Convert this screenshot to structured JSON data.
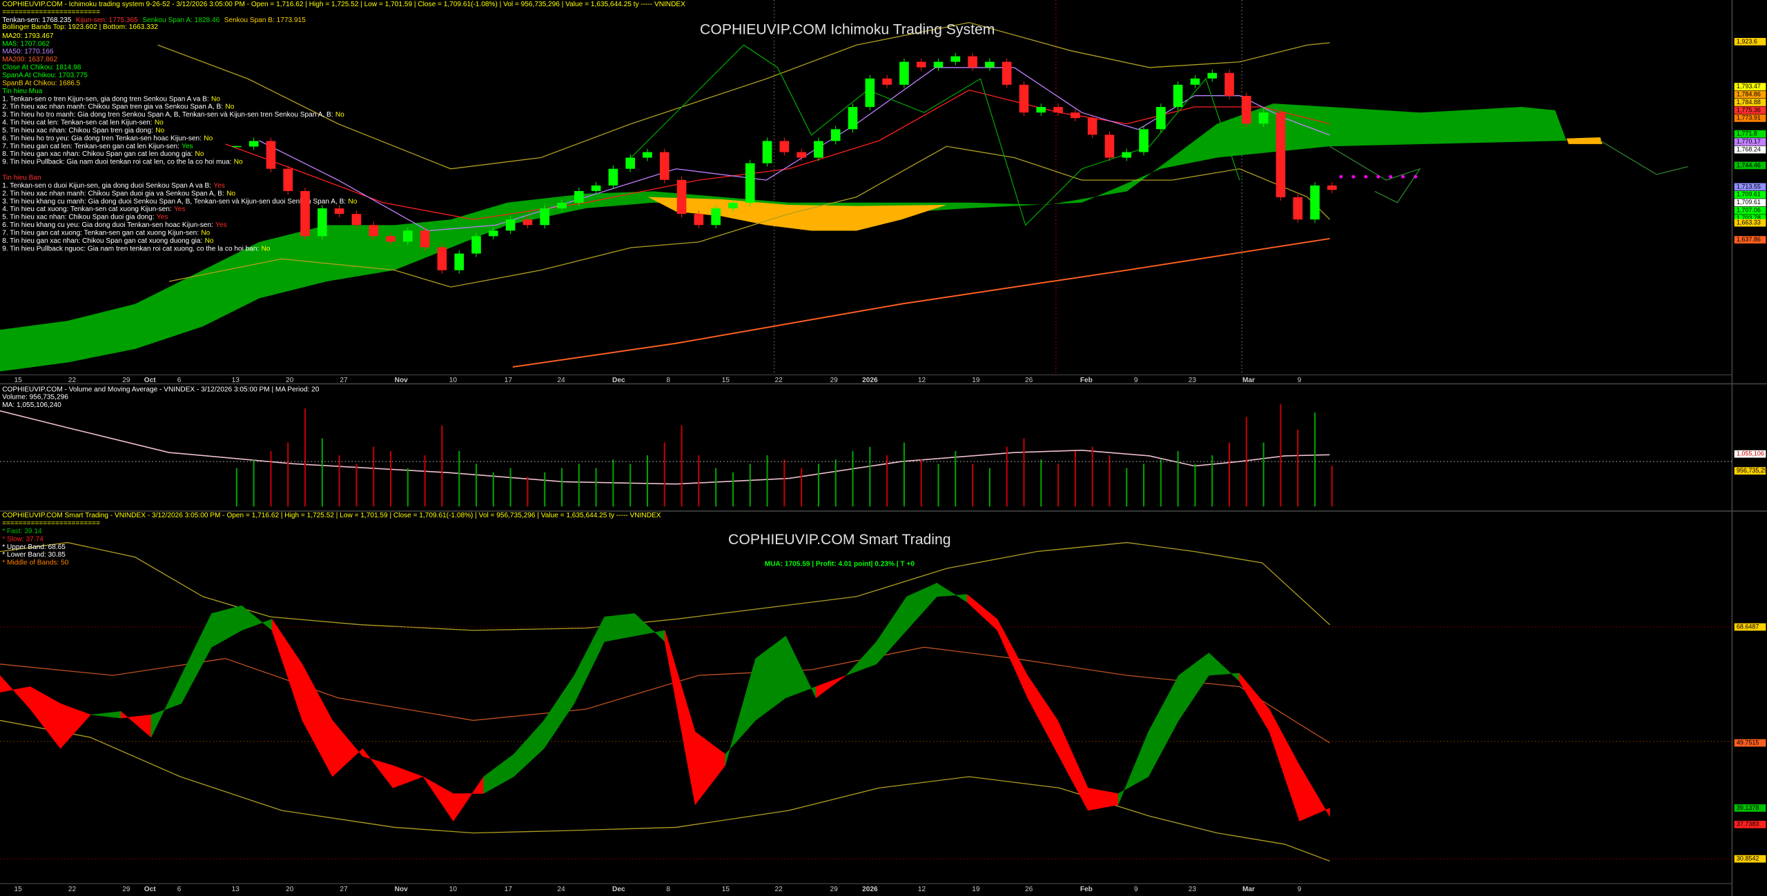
{
  "ichimoku": {
    "header": "COPHIEUVIP.COM - Ichimoku trading system 9-26-52 - 3/12/2026 3:05:00 PM - Open = 1,716.62 | High = 1,725.52 | Low = 1,701.59 | Close = 1,709.61(-1.08%) | Vol = 956,735,296 | Value = 1,635,644.25 ty ----- VNINDEX",
    "separator": "========================",
    "lines": [
      {
        "text": "Tenkan-sen: 1768.235",
        "color": "#ffffff"
      },
      {
        "text": "Kijun-sen: 1775.365",
        "color": "#ff3030"
      },
      {
        "text": "Senkou Span A: 1828.46",
        "color": "#00e000"
      },
      {
        "text": "Senkou Span B: 1773.915",
        "color": "#ffd000"
      }
    ],
    "bollinger": "Bollinger Bands Top: 1923.602 | Bottom: 1663.332",
    "indicators": [
      {
        "text": "MA20: 1793.467",
        "color": "#ffff00"
      },
      {
        "text": "MA5: 1707.062",
        "color": "#00ff00"
      },
      {
        "text": "MA50: 1770.166",
        "color": "#c080ff"
      },
      {
        "text": "MA200: 1637.862",
        "color": "#ff6020"
      },
      {
        "text": "Close At Chikou: 1814.98",
        "color": "#00ff00"
      },
      {
        "text": "SpanA At Chikou: 1703.775",
        "color": "#00ff00"
      },
      {
        "text": "SpanB At Chikou: 1686.5",
        "color": "#ffd000"
      }
    ],
    "buy_title": "Tin hieu Mua",
    "buy_signals": [
      {
        "text": "1. Tenkan-sen o tren Kijun-sen, gia dong tren Senkou Span A va B:",
        "answer": "No"
      },
      {
        "text": "2. Tin hieu xac nhan manh: Chikou Span tren gia va Senkou Span A, B:",
        "answer": "No"
      },
      {
        "text": "3. Tin hieu ho tro manh: Gia dong tren Senkou Span A, B, Tenkan-sen và Kijun-sen tren Senkou Span A, B:",
        "answer": "No"
      },
      {
        "text": "4. Tin hieu cat len: Tenkan-sen cat len Kijun-sen:",
        "answer": "No"
      },
      {
        "text": "5. Tin hieu xac nhan: Chikou Span tren gia dong:",
        "answer": "No"
      },
      {
        "text": "6. Tin hieu ho tro yeu: Gia dong tren Tenkan-sen hoac Kijun-sen:",
        "answer": "No"
      },
      {
        "text": "7. Tin hieu gan cat len: Tenkan-sen gan cat len Kijun-sen:",
        "answer": "Yes"
      },
      {
        "text": "8. Tin hieu gan xac nhan: Chikou Span gan cat len duong gia:",
        "answer": "No"
      },
      {
        "text": "9. Tin hieu Pullback: Gia nam duoi tenkan roi cat len, co the la co hoi mua:",
        "answer": "No"
      }
    ],
    "sell_title": "Tin hieu Ban",
    "sell_signals": [
      {
        "text": "1. Tenkan-sen o duoi Kijun-sen, gia dong duoi Senkou Span A va B:",
        "answer": "Yes"
      },
      {
        "text": "2. Tin hieu xac nhan manh: Chikou Span duoi gia va Senkou Span A, B:",
        "answer": "No"
      },
      {
        "text": "3. Tin hieu khang cu manh: Gia dong duoi Senkou Span A, B, Tenkan-sen và Kijun-sen duoi Senkou Span A, B:",
        "answer": "No"
      },
      {
        "text": "4. Tin hieu cat xuong: Tenkan-sen cat xuong Kijun-sen:",
        "answer": "Yes"
      },
      {
        "text": "5. Tin hieu xac nhan: Chikou Span duoi gia dong:",
        "answer": "Yes"
      },
      {
        "text": "6. Tin hieu khang cu yeu: Gia dong duoi Tenkan-sen hoac Kijun-sen:",
        "answer": "Yes"
      },
      {
        "text": "7. Tin hieu gan cat xuong: Tenkan-sen gan cat xuong Kijun-sen:",
        "answer": "No"
      },
      {
        "text": "8. Tin hieu gan xac nhan: Chikou Span gan cat xuong duong gia:",
        "answer": "No"
      },
      {
        "text": "9. Tin hieu Pullback nguoc: Gia nam tren tenkan roi cat xuong, co the la co hoi ban:",
        "answer": "No"
      }
    ],
    "title": "COPHIEUVIP.COM Ichimoku Trading System",
    "price_labels": [
      {
        "text": "1,923.6",
        "color": "#ffd000"
      },
      {
        "text": "1,793.47",
        "color": "#ffff00"
      },
      {
        "text": "1,784.86",
        "color": "#ffa000"
      },
      {
        "text": "1,784.88",
        "color": "#ffd000"
      },
      {
        "text": "1,775.36",
        "color": "#ff3030"
      },
      {
        "text": "1,773.91",
        "color": "#ff8000"
      },
      {
        "text": "1,771.8",
        "color": "#00e000"
      },
      {
        "text": "1,770.17",
        "color": "#c080ff"
      },
      {
        "text": "1,768.24",
        "color": "#ffffff"
      },
      {
        "text": "1,744.46",
        "color": "#00c000"
      },
      {
        "text": "1,713.55",
        "color": "#9090ff"
      },
      {
        "text": "1,709.61",
        "color": "#00ff00"
      },
      {
        "text": "1,709.61",
        "color": "#ffffff"
      },
      {
        "text": "1,707.06",
        "color": "#00ff00"
      },
      {
        "text": "1,703.78",
        "color": "#00ff00"
      },
      {
        "text": "1,663.33",
        "color": "#ffd000"
      },
      {
        "text": "1,637.86",
        "color": "#ff6020"
      }
    ],
    "closes": [
      1772,
      1780,
      1740,
      1708,
      1643,
      1683,
      1675,
      1659,
      1643,
      1635,
      1651,
      1627,
      1594,
      1618,
      1643,
      1651,
      1667,
      1659,
      1683,
      1691,
      1708,
      1716,
      1740,
      1756,
      1764,
      1724,
      1675,
      1659,
      1683,
      1691,
      1748,
      1780,
      1764,
      1756,
      1780,
      1797,
      1829,
      1870,
      1861,
      1894,
      1886,
      1894,
      1902,
      1886,
      1894,
      1861,
      1821,
      1829,
      1821,
      1813,
      1789,
      1756,
      1764,
      1797,
      1829,
      1861,
      1870,
      1878,
      1845,
      1805,
      1821,
      1699,
      1667,
      1716,
      1709.61
    ],
    "up_color": "#00ff00",
    "down_color": "#ff2020"
  },
  "dates": [
    "15",
    "22",
    "29",
    "Oct",
    "6",
    "13",
    "20",
    "27",
    "Nov",
    "10",
    "17",
    "24",
    "Dec",
    "8",
    "15",
    "22",
    "29",
    "2026",
    "12",
    "19",
    "26",
    "Feb",
    "9",
    "23",
    "Mar",
    "9"
  ],
  "volume": {
    "header": "COPHIEUVIP.COM - Volume and Moving Average - VNINDEX - 3/12/2026 3:05:00 PM | MA Period: 20",
    "volume_text": "Volume: 956,735,296",
    "ma_text": "MA: 1,055,106,240",
    "ma_label": "1,055,106",
    "vol_label": "956,735,296",
    "ma": 1055106240,
    "values": [
      900000000,
      1100000000,
      1300000000,
      1500000000,
      2300000000,
      1600000000,
      1200000000,
      1000000000,
      1400000000,
      1300000000,
      900000000,
      1200000000,
      1900000000,
      1300000000,
      1000000000,
      800000000,
      900000000,
      700000000,
      800000000,
      900000000,
      1000000000,
      900000000,
      1100000000,
      1000000000,
      1200000000,
      1500000000,
      1900000000,
      1200000000,
      900000000,
      800000000,
      1000000000,
      1200000000,
      1100000000,
      900000000,
      1000000000,
      1100000000,
      1300000000,
      1400000000,
      1200000000,
      1500000000,
      1100000000,
      1000000000,
      1300000000,
      1000000000,
      900000000,
      1400000000,
      1600000000,
      1100000000,
      1000000000,
      1300000000,
      1400000000,
      1200000000,
      900000000,
      1000000000,
      1100000000,
      1300000000,
      1000000000,
      1200000000,
      1500000000,
      2100000000,
      1500000000,
      2400000000,
      1800000000,
      2200000000,
      956735296
    ]
  },
  "smart": {
    "header": "COPHIEUVIP.COM Smart Trading - VNINDEX - 3/12/2026 3:05:00 PM - Open = 1,716.62 | High = 1,725.52 | Low = 1,701.59 | Close = 1,709.61(-1.08%) | Vol = 956,735,296 | Value = 1,635,644.25 ty ----- VNINDEX",
    "separator": "========================",
    "params": [
      {
        "text": "* Fast: 39.14",
        "color": "#00c000"
      },
      {
        "text": "* Slow: 37.74",
        "color": "#ff2020"
      },
      {
        "text": "* Upper Band: 68.65",
        "color": "#ffffff"
      },
      {
        "text": "* Lower Band: 30.85",
        "color": "#ffffff"
      },
      {
        "text": "* Middle of Bands: 50",
        "color": "#ff8000"
      }
    ],
    "title": "COPHIEUVIP.COM Smart Trading",
    "status": "MUA: 1705.59 | Profit: 4.01 point| 0.23% | T +0",
    "upper": 68.65,
    "lower": 30.85,
    "middle": 50,
    "right_labels": [
      {
        "value": 68.6487,
        "label": "68.6487",
        "color": "#ffd000"
      },
      {
        "value": 49.7515,
        "label": "49.7515",
        "color": "#ff6020"
      },
      {
        "value": 39.1378,
        "label": "39.1378",
        "color": "#00c000"
      },
      {
        "value": 37.7383,
        "label": "37.7383",
        "color": "#ff2020"
      },
      {
        "value": 30.8542,
        "label": "30.8542",
        "color": "#ffd000"
      }
    ],
    "fast": [
      60.76,
      55.26,
      48.83,
      54.34,
      54.89,
      50.67,
      60.76,
      70.85,
      72.14,
      68.1,
      53.42,
      44.25,
      48.83,
      42.41,
      44.25,
      36.99,
      44.25,
      47.92,
      53.42,
      60.76,
      70.3,
      70.85,
      66.26,
      39.66,
      46.08,
      63.51,
      67.18,
      57.09,
      60.76,
      66.26,
      73.6,
      75.81,
      72.69,
      68.1,
      57.09,
      47.92,
      38.74,
      39.66,
      51.59,
      60.76,
      64.43,
      59.84,
      51.59,
      36.99,
      39.14
    ],
    "slow": [
      58.01,
      58.93,
      56.17,
      54.34,
      53.79,
      54.34,
      56.17,
      65.35,
      68.1,
      69.93,
      62.59,
      53.42,
      47.55,
      46.08,
      44.25,
      41.49,
      41.49,
      44.25,
      48.83,
      56.17,
      66.26,
      67.18,
      68.1,
      51.59,
      47.92,
      53.42,
      57.09,
      58.93,
      60.76,
      62.59,
      68.1,
      73.6,
      73.97,
      69.93,
      60.76,
      53.42,
      42.41,
      41.49,
      44.25,
      53.42,
      60.76,
      61.13,
      55.26,
      46.08,
      37.74
    ],
    "up_color": "#008a00",
    "down_color": "#ff0000"
  }
}
